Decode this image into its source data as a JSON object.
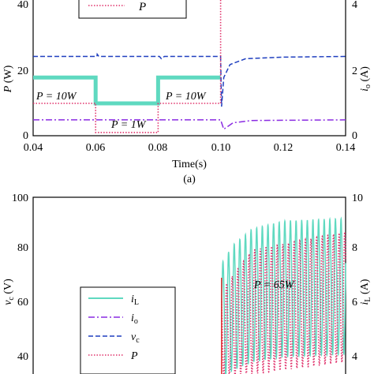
{
  "chart_data": [
    {
      "type": "line",
      "xlabel": "Time(s)",
      "ylabel_left": "P (W)",
      "ylabel_right": "i_o (A)",
      "caption": "(a)",
      "xlim": [
        0.04,
        0.14
      ],
      "ylim_left": [
        0,
        40
      ],
      "ylim_right": [
        0,
        4
      ],
      "x_ticks": [
        "0.04",
        "0.06",
        "0.08",
        "0.10",
        "0.12",
        "0.14"
      ],
      "y_ticks_left": [
        "0",
        "20",
        "40"
      ],
      "y_ticks_right": [
        "0",
        "2",
        "4"
      ],
      "legend_visible": [
        {
          "name": "P",
          "style": "dotted",
          "color": "#e0306a"
        }
      ],
      "annotations": [
        "P = 10W",
        "P = 1W",
        "P = 10W"
      ],
      "series": [
        {
          "name": "i_L",
          "color": "#5fd9c0",
          "style": "thick-solid",
          "points": [
            [
              0.04,
              18
            ],
            [
              0.06,
              18
            ],
            [
              0.06,
              10
            ],
            [
              0.08,
              10
            ],
            [
              0.08,
              18
            ],
            [
              0.1,
              18
            ]
          ]
        },
        {
          "name": "v_c",
          "color": "#1f3fbf",
          "style": "dashed",
          "points": [
            [
              0.04,
              24.5
            ],
            [
              0.0604,
              24.5
            ],
            [
              0.0605,
              25.2
            ],
            [
              0.061,
              24.5
            ],
            [
              0.0804,
              24.5
            ],
            [
              0.081,
              23.8
            ],
            [
              0.082,
              24.5
            ],
            [
              0.1,
              24.5
            ],
            [
              0.1003,
              9
            ],
            [
              0.101,
              18
            ],
            [
              0.103,
              22
            ],
            [
              0.108,
              23.8
            ],
            [
              0.12,
              24.3
            ],
            [
              0.14,
              24.5
            ]
          ]
        },
        {
          "name": "i_o",
          "color": "#8a2be2",
          "style": "dash-dot",
          "points": [
            [
              0.04,
              4.9
            ],
            [
              0.1,
              4.9
            ],
            [
              0.101,
              2
            ],
            [
              0.104,
              4
            ],
            [
              0.11,
              4.7
            ],
            [
              0.14,
              4.9
            ]
          ]
        },
        {
          "name": "P",
          "color": "#e0306a",
          "style": "dotted",
          "points": [
            [
              0.04,
              10
            ],
            [
              0.06,
              10
            ],
            [
              0.06,
              1
            ],
            [
              0.08,
              1
            ],
            [
              0.08,
              10
            ],
            [
              0.1,
              10
            ],
            [
              0.1,
              42
            ]
          ]
        }
      ]
    },
    {
      "type": "line",
      "ylabel_left": "v_c (V)",
      "ylabel_right": "i_L (A)",
      "xlim": [
        0.04,
        0.14
      ],
      "ylim_left": [
        30,
        100
      ],
      "ylim_right": [
        3,
        10
      ],
      "y_ticks_left": [
        "40",
        "60",
        "80",
        "100"
      ],
      "y_ticks_right": [
        "4",
        "6",
        "8",
        "10"
      ],
      "annotations": [
        "P = 65W"
      ],
      "legend": [
        {
          "name": "i_L",
          "style": "solid",
          "color": "#5fd9c0"
        },
        {
          "name": "i_o",
          "style": "dash-dot",
          "color": "#8a2be2"
        },
        {
          "name": "v_c",
          "style": "dashed",
          "color": "#1f3fbf"
        },
        {
          "name": "P",
          "style": "dotted",
          "color": "#e0306a"
        }
      ],
      "series": [
        {
          "name": "i_L",
          "color": "#5fd9c0",
          "style": "oscillating",
          "start_x": 0.1003,
          "envelope_high_A": [
            [
              0.1003,
              7.5
            ],
            [
              0.104,
              8.2
            ],
            [
              0.11,
              8.8
            ],
            [
              0.12,
              9.1
            ],
            [
              0.14,
              9.2
            ]
          ],
          "envelope_low_A": [
            [
              0.1003,
              3.2
            ],
            [
              0.104,
              3.5
            ],
            [
              0.11,
              3.8
            ],
            [
              0.12,
              4.0
            ],
            [
              0.14,
              4.1
            ]
          ]
        },
        {
          "name": "P",
          "color": "#e0306a",
          "style": "oscillating-dotted",
          "start_x": 0.1003,
          "envelope_high_A": [
            [
              0.1003,
              6.5
            ],
            [
              0.11,
              8.0
            ],
            [
              0.14,
              8.7
            ]
          ],
          "envelope_low_A": [
            [
              0.1003,
              3.2
            ],
            [
              0.14,
              3.8
            ]
          ]
        }
      ]
    }
  ],
  "labels": {
    "top_ytick_0": "0",
    "top_ytick_20": "20",
    "top_ytick_40": "40",
    "top_rtick_0": "0",
    "top_rtick_2": "2",
    "top_rtick_4": "4",
    "xt0": "0.04",
    "xt1": "0.06",
    "xt2": "0.08",
    "xt3": "0.10",
    "xt4": "0.12",
    "xt5": "0.14",
    "xlabel": "Time(s)",
    "caption": "(a)",
    "top_ylabel_main": "P",
    "top_ylabel_unit": " (W)",
    "top_rlabel_main": "i",
    "top_rlabel_sub": "o",
    "top_rlabel_unit": " (A)",
    "ann_10w_a": "P = 10W",
    "ann_1w": "P = 1W",
    "ann_10w_b": "P = 10W",
    "legend_top_p": "P",
    "bot_ytick_40": "40",
    "bot_ytick_60": "60",
    "bot_ytick_80": "80",
    "bot_ytick_100": "100",
    "bot_rtick_4": "4",
    "bot_rtick_6": "6",
    "bot_rtick_8": "8",
    "bot_rtick_10": "10",
    "bot_ylabel_main": "v",
    "bot_ylabel_sub": "c",
    "bot_ylabel_unit": " (V)",
    "bot_rlabel_main": "i",
    "bot_rlabel_sub": "L",
    "bot_rlabel_unit": " (A)",
    "ann_65w": "P = 65W",
    "leg_il_main": "i",
    "leg_il_sub": "L",
    "leg_io_main": "i",
    "leg_io_sub": "o",
    "leg_vc_main": "v",
    "leg_vc_sub": "c",
    "leg_p": "P"
  }
}
